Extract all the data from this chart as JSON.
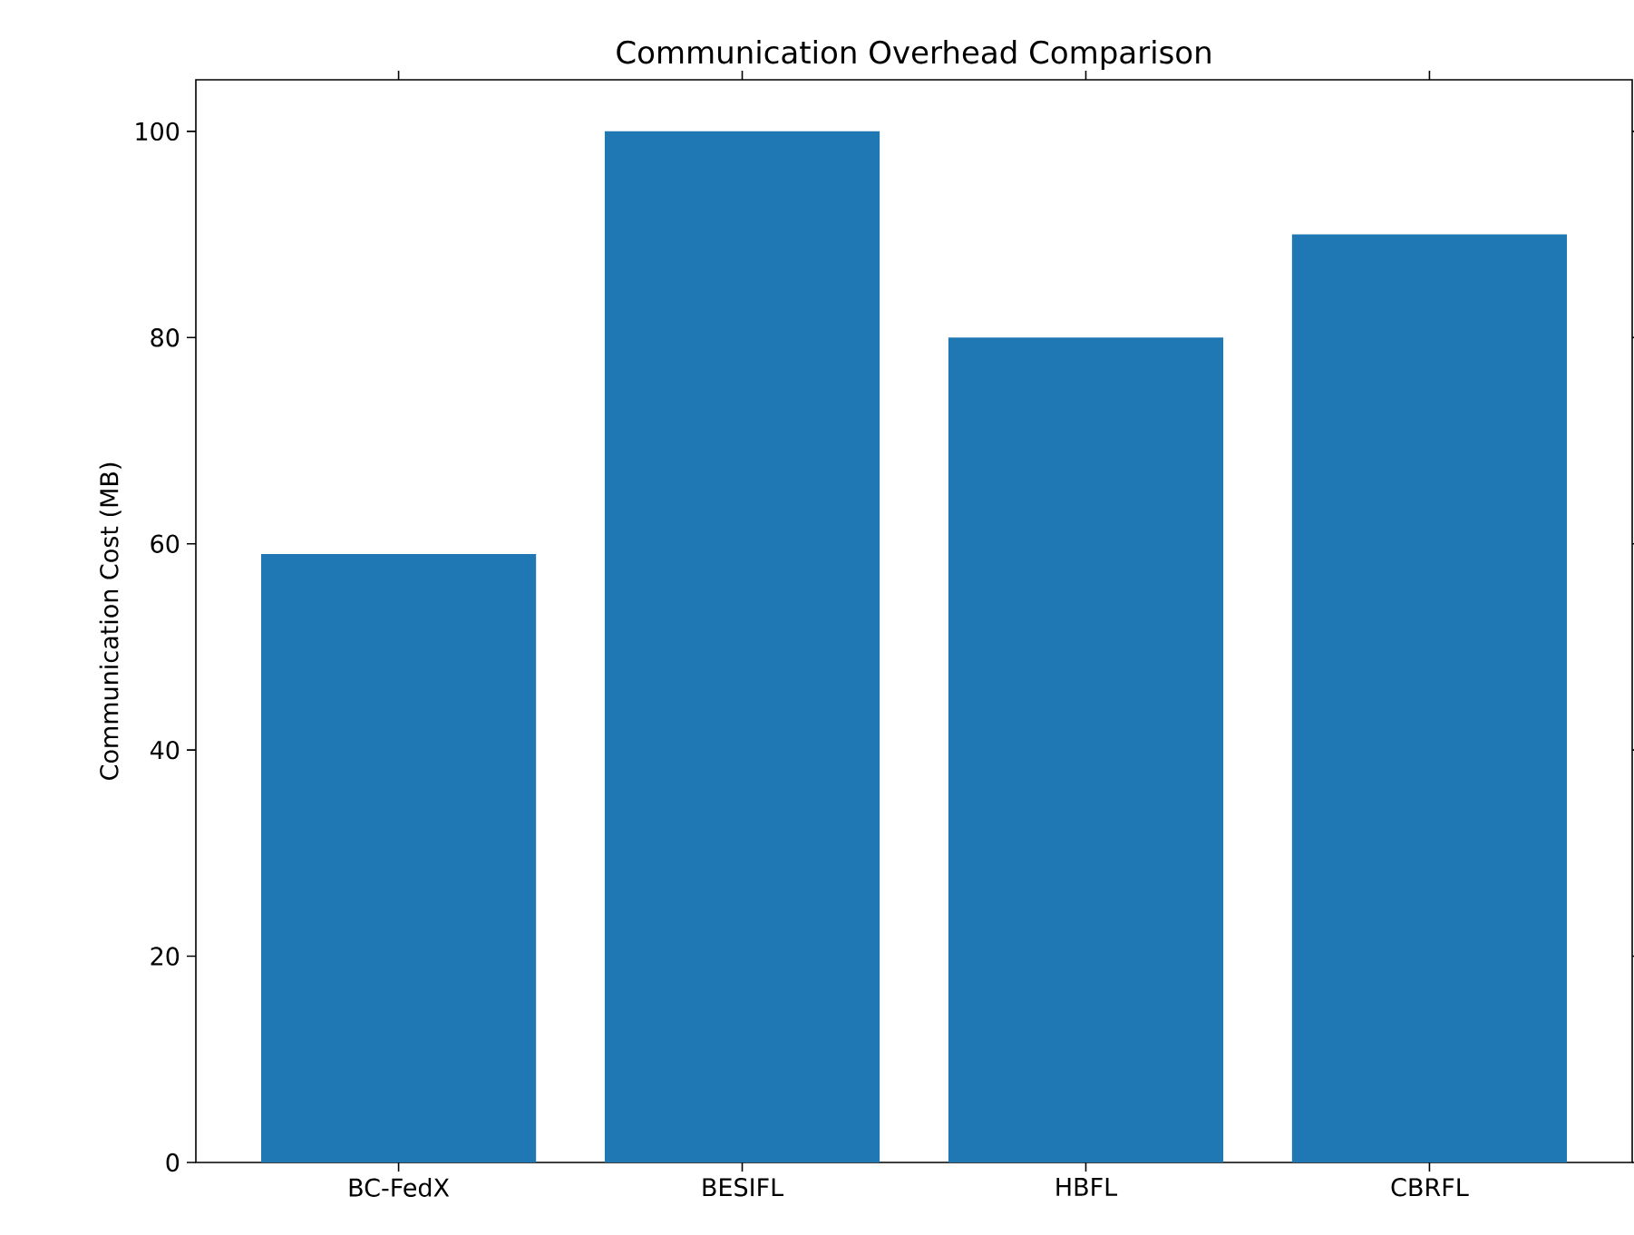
{
  "chart_data": {
    "type": "bar",
    "title": "Communication Overhead Comparison",
    "ylabel": "Communication Cost (MB)",
    "categories": [
      "BC-FedX",
      "BESIFL",
      "HBFL",
      "CBRFL"
    ],
    "values": [
      59,
      100,
      80,
      90
    ],
    "color": "#1f77b4",
    "ylim": [
      0,
      105
    ],
    "yticks": [
      0,
      20,
      40,
      60,
      80,
      100
    ]
  }
}
